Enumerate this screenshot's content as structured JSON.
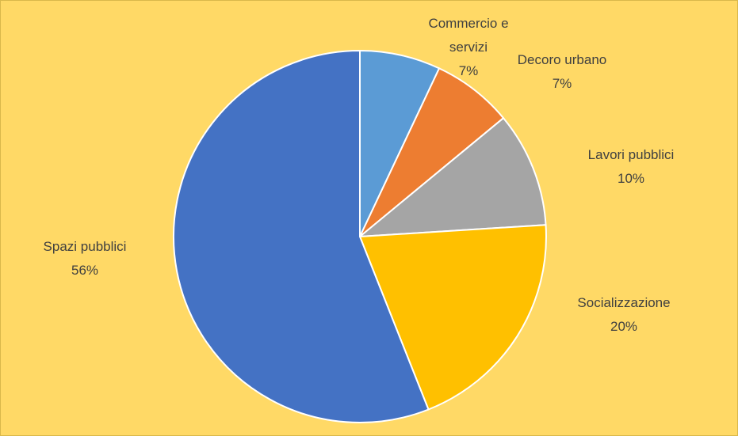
{
  "chart_data": {
    "type": "pie",
    "categories": [
      "Commercio e servizi",
      "Decoro urbano",
      "Lavori pubblici",
      "Socializzazione",
      "Spazi pubblici"
    ],
    "values": [
      7,
      7,
      10,
      20,
      56
    ],
    "value_labels": [
      "7%",
      "7%",
      "10%",
      "20%",
      "56%"
    ],
    "colors": [
      "#5b9bd5",
      "#ed7d31",
      "#a5a5a5",
      "#ffc000",
      "#4472c4"
    ]
  }
}
